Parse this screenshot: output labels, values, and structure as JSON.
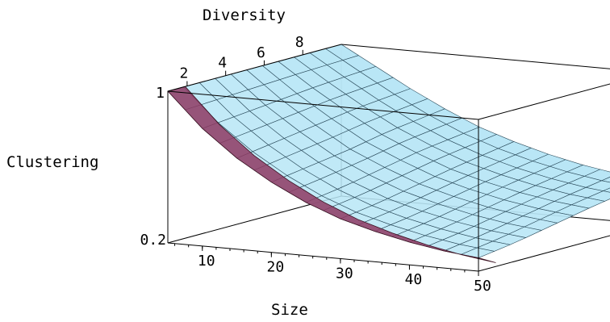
{
  "chart_data": {
    "type": "surface3d",
    "title": "",
    "xlabel": "Size",
    "ylabel": "Diversity",
    "zlabel": "Clustering",
    "xlim": [
      5,
      50
    ],
    "ylim": [
      1,
      10
    ],
    "zlim": [
      0.2,
      1
    ],
    "x_ticks": [
      "10",
      "20",
      "30",
      "40",
      "50"
    ],
    "y_ticks": [
      "2",
      "4",
      "6",
      "8"
    ],
    "z_ticks": [
      "1",
      "0.2"
    ],
    "grid": false,
    "series": [
      {
        "surface_color": "#b8e6f6",
        "underside_color": "#8e3a63",
        "x_samples": [
          5,
          10,
          15,
          20,
          25,
          30,
          35,
          40,
          45,
          50
        ],
        "rows": [
          {
            "y": 1,
            "z": [
              1.0,
              0.82,
              0.68,
              0.57,
              0.48,
              0.41,
              0.36,
              0.32,
              0.29,
              0.27
            ]
          },
          {
            "y": 3,
            "z": [
              1.0,
              0.84,
              0.71,
              0.6,
              0.51,
              0.44,
              0.39,
              0.35,
              0.32,
              0.3
            ]
          },
          {
            "y": 5,
            "z": [
              1.0,
              0.86,
              0.74,
              0.63,
              0.55,
              0.48,
              0.43,
              0.39,
              0.36,
              0.34
            ]
          },
          {
            "y": 7,
            "z": [
              1.0,
              0.88,
              0.77,
              0.67,
              0.59,
              0.52,
              0.47,
              0.43,
              0.4,
              0.38
            ]
          },
          {
            "y": 10,
            "z": [
              1.0,
              0.9,
              0.8,
              0.71,
              0.63,
              0.57,
              0.52,
              0.48,
              0.45,
              0.43
            ]
          }
        ]
      }
    ]
  }
}
